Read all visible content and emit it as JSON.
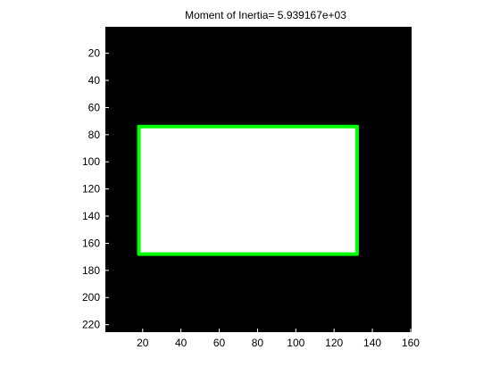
{
  "chart_data": {
    "type": "image",
    "title": "Moment of Inertia= 5.939167e+03",
    "xlabel": "",
    "ylabel": "",
    "xlim": [
      0.5,
      160.5
    ],
    "ylim": [
      0.5,
      225.5
    ],
    "y_direction": "reverse",
    "grid": false,
    "x_ticks": [
      20,
      40,
      60,
      80,
      100,
      120,
      140,
      160
    ],
    "y_ticks": [
      20,
      40,
      60,
      80,
      100,
      120,
      140,
      160,
      180,
      200,
      220
    ],
    "background_color": "#000000",
    "object": {
      "shape": "rectangle",
      "fill_color": "#ffffff",
      "x_range": [
        18,
        132
      ],
      "y_range": [
        74,
        168
      ]
    },
    "boundary": {
      "shape": "rectangle",
      "color": "#00ff00",
      "x_range": [
        18,
        132
      ],
      "y_range": [
        74,
        168
      ]
    }
  }
}
